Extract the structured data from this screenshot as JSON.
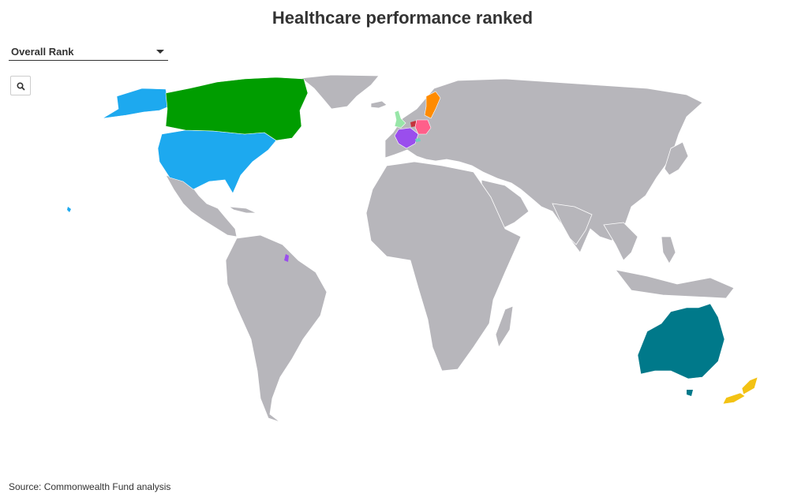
{
  "title": "Healthcare performance ranked",
  "dropdown": {
    "selected": "Overall Rank"
  },
  "zoom": {
    "icon": "magnifier-icon"
  },
  "source": "Source: Commonwealth Fund analysis",
  "colors": {
    "land": "#b7b6bb",
    "usa": "#1da9ef",
    "canada": "#009d00",
    "sweden": "#ff8b00",
    "uk": "#98e6a8",
    "netherlands": "#c4333d",
    "germany": "#ff5f8a",
    "france": "#9a4eed",
    "switzerland": "#72d0c0",
    "australia": "#00798a",
    "new_zealand": "#f3c213"
  }
}
